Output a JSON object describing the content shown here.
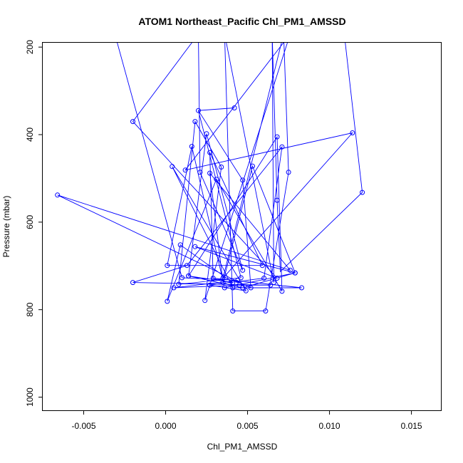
{
  "chart_data": {
    "type": "scatter",
    "title": "ATOM1 Northeast_Pacific Chl_PM1_AMSSD",
    "xlabel": "Chl_PM1_AMSSD",
    "ylabel": "Pressure (mbar)",
    "xlim": [
      -0.0075,
      0.0168
    ],
    "ylim": [
      1030,
      190
    ],
    "y_reversed": true,
    "x_ticks": [
      -0.005,
      0.0,
      0.005,
      0.01,
      0.015
    ],
    "x_tick_labels": [
      "-0.005",
      "0.000",
      "0.005",
      "0.010",
      "0.015"
    ],
    "y_ticks": [
      200,
      400,
      600,
      800,
      1000
    ],
    "y_tick_labels": [
      "200",
      "400",
      "600",
      "800",
      "1000"
    ],
    "grid": false,
    "legend": "none",
    "series_color": "#0000ff",
    "series": [
      {
        "points": [
          {
            "x": 0.012,
            "y": 532
          },
          {
            "x": 0.0068,
            "y": 550
          },
          {
            "x": 0.0066,
            "y": 738
          },
          {
            "x": 0.0041,
            "y": 803
          },
          {
            "x": 0.0061,
            "y": 803
          },
          {
            "x": 0.0075,
            "y": 486
          },
          {
            "x": 0.0035,
            "y": 728
          },
          {
            "x": 0.0114,
            "y": 396
          },
          {
            "x": 0.0012,
            "y": 481
          },
          {
            "x": 0.0024,
            "y": 779
          },
          {
            "x": 0.0034,
            "y": 474
          },
          {
            "x": 0.0018,
            "y": 370
          },
          {
            "x": 0.0008,
            "y": 742
          },
          {
            "x": 0.0046,
            "y": 727
          },
          {
            "x": 0.002,
            "y": 345
          },
          {
            "x": 0.0042,
            "y": 339
          },
          {
            "x": 0.0047,
            "y": 504
          },
          {
            "x": 0.0052,
            "y": 750
          },
          {
            "x": -0.0066,
            "y": 538
          },
          {
            "x": 0.0076,
            "y": 710
          },
          {
            "x": 0.0027,
            "y": 488
          },
          {
            "x": 0.0035,
            "y": 738
          },
          {
            "x": 0.0053,
            "y": 472
          },
          {
            "x": 0.0079,
            "y": 716
          },
          {
            "x": 0.0018,
            "y": 656
          },
          {
            "x": 0.0068,
            "y": 728
          },
          {
            "x": -0.002,
            "y": 370
          },
          {
            "x": 0.0021,
            "y": 486
          },
          {
            "x": 0.0047,
            "y": 710
          },
          {
            "x": 0.0025,
            "y": 398
          },
          {
            "x": 0.0014,
            "y": 723
          },
          {
            "x": 0.0041,
            "y": 738
          },
          {
            "x": 0.0009,
            "y": 652
          },
          {
            "x": 0.0001,
            "y": 781
          },
          {
            "x": 0.0031,
            "y": 502
          },
          {
            "x": 0.0071,
            "y": 758
          },
          {
            "x": 0.0068,
            "y": 405
          },
          {
            "x": 0.0014,
            "y": 723
          },
          {
            "x": 0.0047,
            "y": 750
          },
          {
            "x": 0.0079,
            "y": 716
          },
          {
            "x": 0.0036,
            "y": 750
          },
          {
            "x": 0.0016,
            "y": 427
          },
          {
            "x": 0.0001,
            "y": 699
          },
          {
            "x": 0.0059,
            "y": 699
          },
          {
            "x": 0.0027,
            "y": 441
          },
          {
            "x": 0.0029,
            "y": 728
          },
          {
            "x": 0.0083,
            "y": 750
          },
          {
            "x": 0.0041,
            "y": 750
          },
          {
            "x": 0.0004,
            "y": 473
          },
          {
            "x": 0.0049,
            "y": 757
          },
          {
            "x": 0.0027,
            "y": 744
          },
          {
            "x": 0.006,
            "y": 728
          },
          {
            "x": 0.0071,
            "y": 428
          },
          {
            "x": 0.0013,
            "y": 699
          },
          {
            "x": -0.002,
            "y": 738
          },
          {
            "x": 0.0064,
            "y": 744
          },
          {
            "x": 0.0045,
            "y": 744
          },
          {
            "x": 0.0005,
            "y": 750
          },
          {
            "x": 0.0044,
            "y": 733
          },
          {
            "x": 0.001,
            "y": 727
          }
        ],
        "path": [
          {
            "x": 0.0109,
            "y": 170
          },
          {
            "x": 0.012,
            "y": 532
          },
          {
            "x": 0.007,
            "y": 713
          },
          {
            "x": 0.0068,
            "y": 550
          },
          {
            "x": 0.0065,
            "y": 170
          },
          {
            "x": 0.0066,
            "y": 738
          },
          {
            "x": 0.0036,
            "y": 170
          },
          {
            "x": 0.0041,
            "y": 803
          },
          {
            "x": 0.0061,
            "y": 803
          },
          {
            "x": 0.0075,
            "y": 486
          },
          {
            "x": 0.0072,
            "y": 170
          },
          {
            "x": 0.0035,
            "y": 728
          },
          {
            "x": 0.0114,
            "y": 396
          },
          {
            "x": 0.0012,
            "y": 481
          },
          {
            "x": 0.0076,
            "y": 170
          },
          {
            "x": 0.0024,
            "y": 779
          },
          {
            "x": 0.0034,
            "y": 474
          },
          {
            "x": 0.0018,
            "y": 370
          },
          {
            "x": 0.0008,
            "y": 742
          },
          {
            "x": 0.0046,
            "y": 727
          },
          {
            "x": 0.002,
            "y": 345
          },
          {
            "x": 0.0042,
            "y": 339
          },
          {
            "x": 0.002,
            "y": 345
          },
          {
            "x": 0.0047,
            "y": 504
          },
          {
            "x": 0.0052,
            "y": 750
          },
          {
            "x": -0.0066,
            "y": 538
          },
          {
            "x": 0.0076,
            "y": 710
          },
          {
            "x": 0.0027,
            "y": 488
          },
          {
            "x": 0.0035,
            "y": 738
          },
          {
            "x": 0.0053,
            "y": 472
          },
          {
            "x": 0.0079,
            "y": 716
          },
          {
            "x": 0.0018,
            "y": 656
          },
          {
            "x": 0.0068,
            "y": 728
          },
          {
            "x": -0.002,
            "y": 370
          },
          {
            "x": 0.002,
            "y": 170
          },
          {
            "x": 0.0021,
            "y": 486
          },
          {
            "x": 0.0047,
            "y": 710
          },
          {
            "x": 0.0025,
            "y": 398
          },
          {
            "x": 0.0014,
            "y": 723
          },
          {
            "x": 0.0041,
            "y": 738
          },
          {
            "x": 0.0009,
            "y": 652
          },
          {
            "x": 0.0001,
            "y": 781
          },
          {
            "x": 0.0031,
            "y": 502
          },
          {
            "x": 0.0071,
            "y": 758
          },
          {
            "x": 0.0068,
            "y": 405
          },
          {
            "x": 0.0014,
            "y": 723
          },
          {
            "x": 0.0047,
            "y": 750
          },
          {
            "x": 0.0079,
            "y": 716
          },
          {
            "x": 0.0036,
            "y": 750
          },
          {
            "x": 0.0016,
            "y": 427
          },
          {
            "x": 0.0001,
            "y": 699
          },
          {
            "x": 0.0059,
            "y": 699
          },
          {
            "x": 0.0027,
            "y": 441
          },
          {
            "x": 0.0029,
            "y": 728
          },
          {
            "x": 0.0083,
            "y": 750
          },
          {
            "x": 0.0041,
            "y": 750
          },
          {
            "x": 0.0004,
            "y": 473
          },
          {
            "x": 0.0049,
            "y": 757
          },
          {
            "x": 0.0027,
            "y": 744
          },
          {
            "x": 0.006,
            "y": 728
          },
          {
            "x": 0.0071,
            "y": 428
          },
          {
            "x": 0.0013,
            "y": 699
          },
          {
            "x": -0.002,
            "y": 738
          },
          {
            "x": 0.0064,
            "y": 744
          },
          {
            "x": 0.0045,
            "y": 744
          },
          {
            "x": 0.0005,
            "y": 750
          },
          {
            "x": 0.0044,
            "y": 733
          },
          {
            "x": 0.001,
            "y": 727
          },
          {
            "x": -0.0031,
            "y": 170
          }
        ]
      }
    ]
  }
}
